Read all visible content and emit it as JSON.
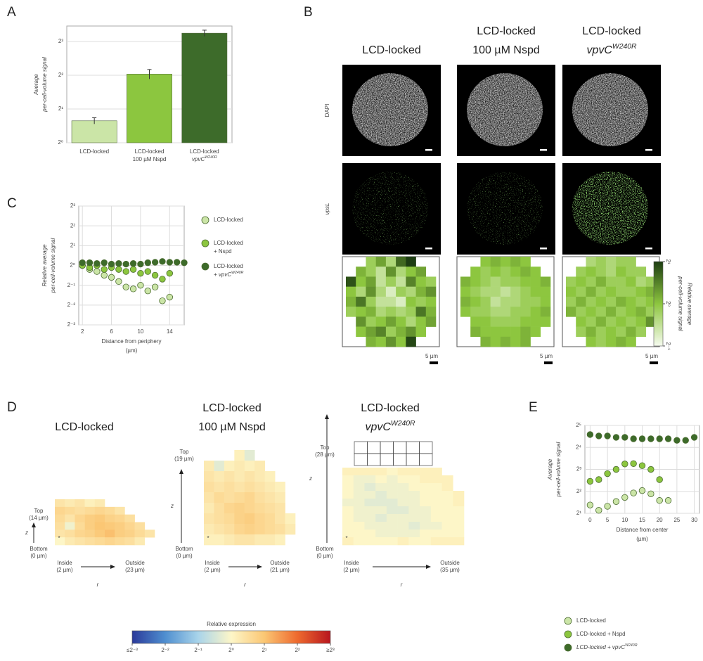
{
  "panel_letters": [
    "A",
    "B",
    "C",
    "D",
    "E"
  ],
  "chart_data": [
    {
      "type": "bar",
      "ylabel": [
        "Average",
        "per-cell-volume signal"
      ],
      "categories": [
        [
          "LCD-locked"
        ],
        [
          "LCD-locked",
          "100 µM Nspd"
        ],
        [
          "LCD-locked",
          "vpvC"
        ]
      ],
      "category_superscripts": [
        null,
        null,
        "W240R"
      ],
      "values": [
        1.57,
        4.1,
        9.5
      ],
      "errors": [
        0.1,
        0.4,
        0.6
      ],
      "colors": [
        "#cbe5a7",
        "#8cc63f",
        "#3d6b2a"
      ],
      "ylog": true,
      "ylim": [
        1,
        11
      ],
      "yticks": [
        {
          "value": 1,
          "label": "2⁰"
        },
        {
          "value": 2,
          "label": "2¹"
        },
        {
          "value": 4,
          "label": "2²"
        },
        {
          "value": 8,
          "label": "2³"
        }
      ],
      "grid": true
    },
    {
      "type": "scatter",
      "xlabel": [
        "Distance from periphery",
        "(µm)"
      ],
      "ylabel": [
        "Relative average",
        "per-cell-volume signal"
      ],
      "ylog": true,
      "ylim": [
        0.125,
        8
      ],
      "xlim": [
        1.5,
        16
      ],
      "yticks": [
        {
          "value": 0.125,
          "label": "2⁻³"
        },
        {
          "value": 0.25,
          "label": "2⁻²"
        },
        {
          "value": 0.5,
          "label": "2⁻¹"
        },
        {
          "value": 1,
          "label": "2⁰"
        },
        {
          "value": 2,
          "label": "2¹"
        },
        {
          "value": 4,
          "label": "2²"
        },
        {
          "value": 8,
          "label": "2³"
        }
      ],
      "xticks": [
        2,
        6,
        10,
        14
      ],
      "grid": true,
      "legend": "right",
      "series": [
        {
          "name": [
            "LCD-locked"
          ],
          "name_sup": null,
          "color": "#cbe5a7",
          "x": [
            2,
            3,
            4,
            5,
            6,
            7,
            8,
            9,
            10,
            11,
            12,
            13,
            14
          ],
          "values": [
            1,
            0.87,
            0.81,
            0.71,
            0.66,
            0.57,
            0.47,
            0.44,
            0.5,
            0.41,
            0.47,
            0.29,
            0.33
          ]
        },
        {
          "name": [
            "LCD-locked",
            "+ Nspd"
          ],
          "name_sup": null,
          "color": "#8cc63f",
          "x": [
            2,
            3,
            4,
            5,
            6,
            7,
            8,
            9,
            10,
            11,
            12,
            13,
            14
          ],
          "values": [
            1,
            0.93,
            1,
            0.87,
            0.93,
            0.87,
            0.81,
            0.87,
            0.76,
            0.81,
            0.71,
            0.62,
            0.76
          ]
        },
        {
          "name": [
            "LCD-locked",
            "+ vpvC"
          ],
          "name_sup": "W240R",
          "color": "#3d6b2a",
          "x": [
            2,
            3,
            4,
            5,
            6,
            7,
            8,
            9,
            10,
            11,
            12,
            13,
            14,
            15,
            16
          ],
          "values": [
            1.1,
            1.1,
            1.07,
            1.1,
            1.05,
            1.07,
            1.05,
            1.07,
            1.05,
            1.1,
            1.12,
            1.15,
            1.12,
            1.12,
            1.1
          ]
        }
      ]
    },
    {
      "type": "scatter",
      "xlabel": [
        "Distance from center",
        "(µm)"
      ],
      "ylabel": [
        "Average",
        "per-cell-volume signal"
      ],
      "ylog": true,
      "ylim": [
        2,
        32
      ],
      "xlim": [
        -1.5,
        31.5
      ],
      "yticks": [
        {
          "value": 2,
          "label": "2¹"
        },
        {
          "value": 4,
          "label": "2²"
        },
        {
          "value": 8,
          "label": "2³"
        },
        {
          "value": 16,
          "label": "2⁴"
        },
        {
          "value": 32,
          "label": "2⁵"
        }
      ],
      "xticks": [
        0,
        5,
        10,
        15,
        20,
        25,
        30
      ],
      "grid": true,
      "legend": "bottom",
      "series": [
        {
          "name": [
            "LCD-locked"
          ],
          "name_sup": null,
          "color": "#cbe5a7",
          "x": [
            0,
            2.5,
            5,
            7.5,
            10,
            12.5,
            15,
            17.5,
            20,
            22.5
          ],
          "values": [
            2.6,
            2.2,
            2.5,
            2.9,
            3.3,
            3.8,
            4.1,
            3.7,
            3,
            3
          ]
        },
        {
          "name": [
            "LCD-locked + Nspd"
          ],
          "name_sup": null,
          "color": "#8cc63f",
          "x": [
            0,
            2.5,
            5,
            7.5,
            10,
            12.5,
            15,
            17.5,
            20
          ],
          "values": [
            5.5,
            5.8,
            7,
            8,
            9.5,
            9.6,
            9,
            8,
            5.8
          ]
        },
        {
          "name": [
            "LCD-locked + vpvC"
          ],
          "name_sup": "W240R",
          "color": "#3d6b2a",
          "x": [
            0,
            2.5,
            5,
            7.5,
            10,
            12.5,
            15,
            17.5,
            20,
            22.5,
            25,
            27.5,
            30
          ],
          "values": [
            24,
            23,
            23,
            22,
            22,
            21,
            21,
            21,
            21,
            21,
            20,
            20,
            22
          ]
        }
      ]
    }
  ],
  "panel_b": {
    "columns": [
      {
        "title": [
          "LCD-locked"
        ],
        "title_sup": null
      },
      {
        "title": [
          "LCD-locked",
          "100 µM Nspd"
        ],
        "title_sup": null
      },
      {
        "title": [
          "LCD-locked",
          "vpvC"
        ],
        "title_sup": "W240R"
      }
    ],
    "rows": [
      "DAPI",
      "vpsL"
    ],
    "scale_bar": "5 µm",
    "heatmaps": [
      [
        [
          null,
          null,
          0.9,
          1.2,
          0.8,
          1.6,
          2.0,
          null,
          null
        ],
        [
          null,
          1.1,
          0.9,
          0.7,
          1.3,
          0.8,
          1.0,
          1.2,
          null
        ],
        [
          1.8,
          1.0,
          1.2,
          0.7,
          0.9,
          0.7,
          1.4,
          1.0,
          0.9
        ],
        [
          1.0,
          0.8,
          1.3,
          0.8,
          0.6,
          0.9,
          0.8,
          1.1,
          1.3
        ],
        [
          1.1,
          1.5,
          0.9,
          0.7,
          0.7,
          0.6,
          1.0,
          0.9,
          1.0
        ],
        [
          0.9,
          1.0,
          1.1,
          0.8,
          0.9,
          0.8,
          0.9,
          1.5,
          1.1
        ],
        [
          null,
          1.3,
          0.9,
          1.0,
          1.2,
          1.0,
          0.8,
          1.0,
          1.2
        ],
        [
          null,
          1.0,
          1.2,
          1.4,
          0.9,
          1.1,
          1.3,
          1.0,
          null
        ],
        [
          null,
          null,
          1.1,
          1.0,
          1.3,
          1.0,
          1.9,
          null,
          null
        ]
      ],
      [
        [
          null,
          null,
          1.0,
          1.1,
          1.0,
          1.1,
          1.0,
          null,
          null
        ],
        [
          null,
          1.0,
          0.9,
          1.0,
          0.9,
          1.0,
          1.1,
          1.0,
          null
        ],
        [
          1.1,
          1.0,
          0.9,
          0.8,
          0.9,
          0.9,
          1.0,
          1.0,
          1.1
        ],
        [
          1.0,
          0.9,
          0.8,
          0.8,
          0.7,
          0.8,
          0.9,
          1.0,
          1.0
        ],
        [
          1.1,
          1.0,
          0.9,
          0.7,
          0.8,
          0.8,
          0.9,
          0.9,
          1.0
        ],
        [
          1.0,
          0.9,
          0.9,
          0.8,
          0.8,
          0.9,
          0.9,
          1.0,
          1.1
        ],
        [
          null,
          1.0,
          1.0,
          0.9,
          0.9,
          0.9,
          1.0,
          1.0,
          1.0
        ],
        [
          null,
          1.1,
          1.0,
          1.0,
          1.0,
          1.0,
          1.1,
          1.0,
          null
        ],
        [
          null,
          null,
          1.1,
          1.0,
          1.1,
          1.0,
          1.1,
          null,
          null
        ]
      ],
      [
        [
          null,
          null,
          0.8,
          0.9,
          0.8,
          0.9,
          0.9,
          null,
          null
        ],
        [
          null,
          0.9,
          1.0,
          0.9,
          0.8,
          1.0,
          0.9,
          0.9,
          null
        ],
        [
          0.9,
          1.0,
          0.9,
          1.1,
          0.9,
          0.9,
          1.0,
          0.8,
          0.9
        ],
        [
          1.0,
          0.9,
          1.1,
          0.9,
          1.0,
          0.9,
          0.9,
          1.0,
          1.1
        ],
        [
          0.9,
          1.1,
          0.9,
          1.0,
          0.9,
          1.1,
          1.0,
          0.9,
          1.0
        ],
        [
          1.1,
          0.9,
          1.0,
          0.9,
          1.1,
          0.9,
          1.0,
          1.1,
          0.9
        ],
        [
          null,
          1.0,
          0.9,
          1.1,
          0.9,
          1.0,
          0.9,
          1.0,
          1.3
        ],
        [
          null,
          0.9,
          1.1,
          0.9,
          1.0,
          0.9,
          1.1,
          0.9,
          null
        ],
        [
          null,
          null,
          1.0,
          0.9,
          1.0,
          1.1,
          1.0,
          null,
          null
        ]
      ]
    ],
    "colorbar": {
      "label": [
        "Relative average",
        "per-cell-volume signal"
      ],
      "lim": [
        0.5,
        2
      ],
      "colors": [
        "#f6fbef",
        "#8dc63f",
        "#1d3d12"
      ],
      "ticks": [
        {
          "value": 2,
          "label": "2¹"
        },
        {
          "value": 1,
          "label": "2⁰"
        },
        {
          "value": 0.5,
          "label": "2⁻¹"
        }
      ]
    }
  },
  "panel_d": {
    "maps": [
      {
        "title": [
          "LCD-locked"
        ],
        "title_sup": null,
        "top": [
          "Top",
          "(14 µm)"
        ],
        "bottom": [
          "Bottom",
          "(0 µm)"
        ],
        "inside": [
          "Inside",
          "(2 µm)"
        ],
        "outside": [
          "Outside",
          "(23 µm)"
        ],
        "z": "z",
        "r": "r",
        "marker": "*",
        "rows": [
          [
            1.3,
            1.2,
            1.3,
            1.1,
            1.2,
            null,
            null,
            null,
            null,
            null
          ],
          [
            1.6,
            1.5,
            1.4,
            1.5,
            1.6,
            1.5,
            1.3,
            null,
            null,
            null
          ],
          [
            1.5,
            1.3,
            1.6,
            1.8,
            1.9,
            1.7,
            1.6,
            1.4,
            null,
            null
          ],
          [
            1.4,
            0.9,
            1.5,
            1.8,
            2.0,
            1.9,
            1.8,
            1.6,
            1.4,
            null
          ],
          [
            1.3,
            1.4,
            1.6,
            1.7,
            1.9,
            2.1,
            1.8,
            1.7,
            1.5,
            1.3
          ],
          [
            1.0,
            1.2,
            1.3,
            1.4,
            1.5,
            1.6,
            1.5,
            1.4,
            1.2,
            null
          ]
        ]
      },
      {
        "title": [
          "LCD-locked",
          "100 µM Nspd"
        ],
        "title_sup": null,
        "top": [
          "Top",
          "(19 µm)"
        ],
        "bottom": [
          "Bottom",
          "(0 µm)"
        ],
        "inside": [
          "Inside",
          "(2 µm)"
        ],
        "outside": [
          "Outside",
          "(21 µm)"
        ],
        "z": "z",
        "r": "r",
        "marker": "*",
        "rows": [
          [
            null,
            null,
            null,
            1.1,
            0.8,
            null,
            null,
            null,
            null
          ],
          [
            1.2,
            0.8,
            1.1,
            1.2,
            1.1,
            1.2,
            null,
            null,
            null
          ],
          [
            1.3,
            1.2,
            1.3,
            1.2,
            1.3,
            1.2,
            1.1,
            null,
            null
          ],
          [
            1.4,
            1.3,
            1.4,
            1.3,
            1.4,
            1.3,
            1.2,
            1.1,
            null
          ],
          [
            1.3,
            1.5,
            1.4,
            1.5,
            1.6,
            1.4,
            1.3,
            1.2,
            null
          ],
          [
            1.2,
            1.4,
            1.6,
            1.7,
            1.6,
            1.5,
            1.4,
            1.3,
            null
          ],
          [
            1.3,
            1.4,
            1.5,
            1.7,
            1.8,
            1.6,
            1.5,
            1.3,
            1.1
          ],
          [
            1.2,
            1.3,
            1.4,
            1.6,
            1.7,
            1.6,
            1.5,
            1.4,
            1.2
          ],
          [
            1.1,
            1.1,
            1.2,
            1.3,
            1.3,
            1.2,
            1.2,
            1.1,
            null
          ]
        ]
      },
      {
        "title": [
          "LCD-locked",
          "vpvC"
        ],
        "title_sup": "W240R",
        "top": [
          "Top",
          "(28 µm)"
        ],
        "bottom": [
          "Bottom",
          "(0 µm)"
        ],
        "inside": [
          "Inside",
          "(2 µm)"
        ],
        "outside": [
          "Outside",
          "(35 µm)"
        ],
        "z": "z",
        "r": "r",
        "marker": "*",
        "rows": [
          [
            1.1,
            1.1,
            1.1,
            1.1,
            1.0,
            1.1,
            1.1,
            1.1,
            1.1,
            null,
            null
          ],
          [
            1.0,
            0.9,
            0.9,
            1.0,
            0.9,
            1.0,
            1.0,
            1.1,
            1.1,
            1.1,
            null
          ],
          [
            1.0,
            0.9,
            0.8,
            0.9,
            0.9,
            0.9,
            1.0,
            1.0,
            1.0,
            1.1,
            null
          ],
          [
            1.0,
            0.9,
            0.9,
            0.8,
            0.9,
            0.9,
            0.9,
            1.0,
            1.0,
            1.0,
            1.1
          ],
          [
            0.9,
            0.9,
            0.8,
            0.8,
            0.8,
            0.9,
            0.9,
            1.0,
            1.0,
            1.0,
            1.1
          ],
          [
            1.0,
            0.9,
            0.9,
            0.9,
            0.8,
            0.8,
            0.9,
            0.9,
            1.0,
            1.0,
            1.0
          ],
          [
            1.0,
            0.9,
            0.9,
            0.8,
            0.9,
            0.9,
            0.9,
            0.9,
            1.0,
            1.0,
            1.0
          ],
          [
            1.0,
            1.0,
            0.9,
            0.9,
            0.9,
            0.9,
            0.8,
            0.9,
            0.9,
            1.0,
            1.0
          ],
          [
            1.0,
            1.0,
            1.0,
            0.9,
            0.9,
            0.9,
            0.9,
            1.0,
            1.0,
            1.0,
            1.0
          ],
          [
            1.1,
            1.0,
            1.0,
            1.0,
            1.0,
            1.1,
            1.0,
            1.0,
            1.1,
            1.1,
            1.1
          ]
        ]
      }
    ],
    "colorbar": {
      "label": "Relative expression",
      "lim": [
        0.125,
        8
      ],
      "colors": [
        "#2b3a9a",
        "#4f8fd0",
        "#a9d4ea",
        "#fdf6c8",
        "#fbc774",
        "#ee6a2e",
        "#b8161e"
      ],
      "ticks": [
        {
          "value": 0.125,
          "label": "≤2⁻³"
        },
        {
          "value": 0.25,
          "label": "2⁻²"
        },
        {
          "value": 0.5,
          "label": "2⁻¹"
        },
        {
          "value": 1,
          "label": "2⁰"
        },
        {
          "value": 2,
          "label": "2¹"
        },
        {
          "value": 4,
          "label": "2²"
        },
        {
          "value": 8,
          "label": "≥2³"
        }
      ]
    }
  }
}
